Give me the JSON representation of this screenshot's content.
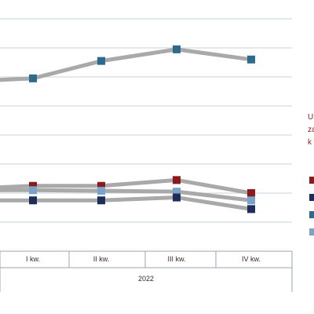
{
  "chart_data": {
    "type": "line",
    "categories": [
      "I kw.",
      "II kw.",
      "III kw.",
      "IV kw."
    ],
    "group_label": "2022",
    "ylim": [
      0,
      8
    ],
    "grid": true,
    "legend_position": "right",
    "legend_title_lines": [
      "U",
      "za",
      "k"
    ],
    "series": [
      {
        "color": "#2d6a8f",
        "lead_in": 5.9,
        "values": [
          5.95,
          6.55,
          6.95,
          6.6
        ]
      },
      {
        "color": "#8b1a1a",
        "lead_in": 2.2,
        "values": [
          2.25,
          2.25,
          2.45,
          2.0
        ]
      },
      {
        "color": "#7ba3c9",
        "lead_in": 2.1,
        "values": [
          2.1,
          2.08,
          2.05,
          1.75
        ]
      },
      {
        "color": "#1e2d5a",
        "lead_in": 1.75,
        "values": [
          1.75,
          1.75,
          1.85,
          1.45
        ]
      }
    ]
  }
}
